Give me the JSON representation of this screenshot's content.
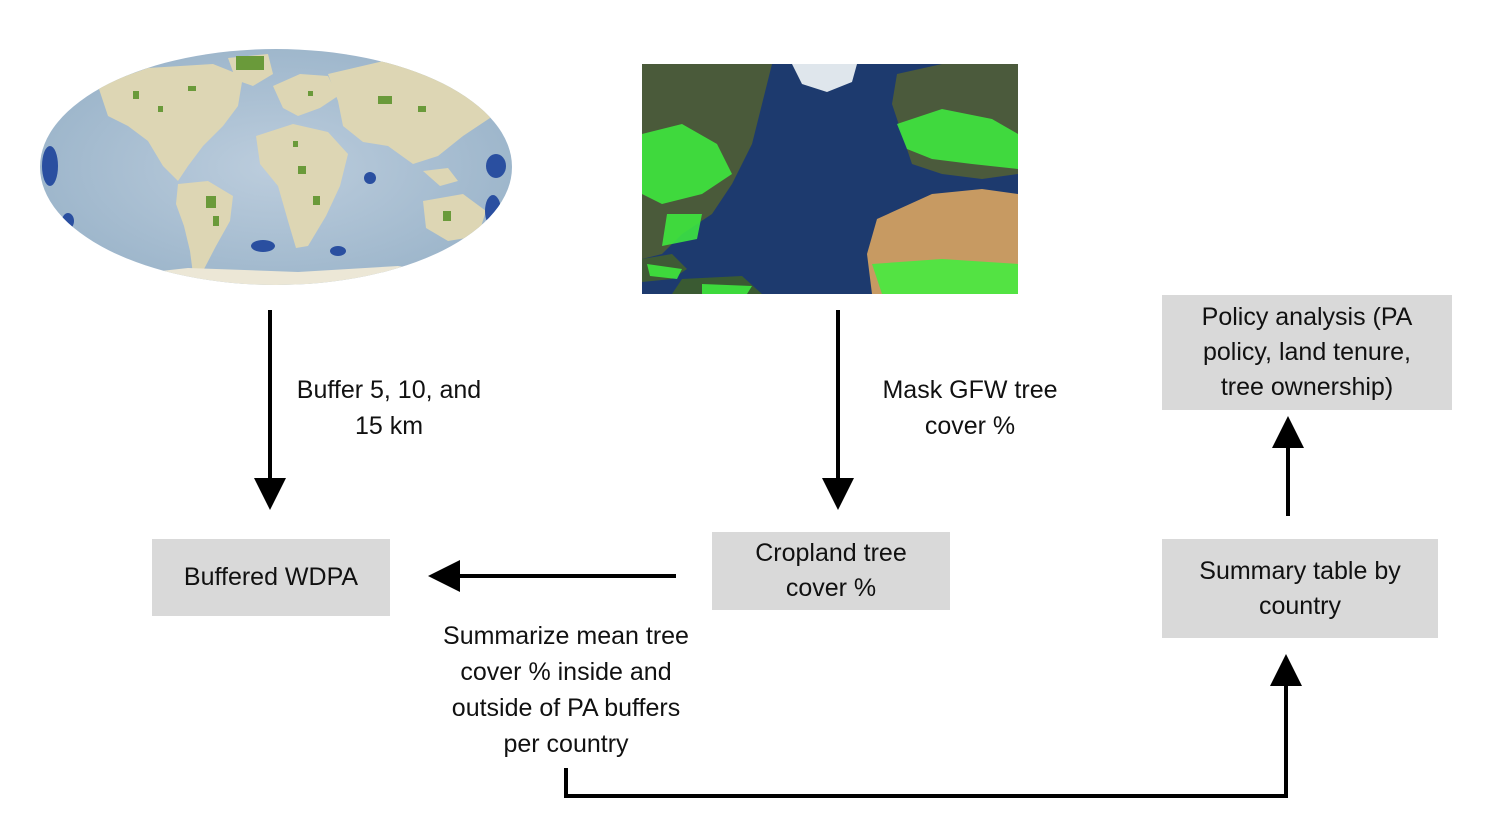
{
  "images": {
    "world_map": {
      "icon": "wdpa-world-map-icon"
    },
    "satellite_map": {
      "icon": "gfw-tree-cover-satellite-icon"
    }
  },
  "nodes": {
    "buffered_wdpa": "Buffered WDPA",
    "cropland_tree_cover_line1": "Cropland tree",
    "cropland_tree_cover_line2": "cover %",
    "summary_table_line1": "Summary table by",
    "summary_table_line2": "country",
    "policy_analysis_line1": "Policy analysis (PA",
    "policy_analysis_line2": "policy, land tenure,",
    "policy_analysis_line3": "tree ownership)"
  },
  "edge_labels": {
    "buffer_line1": "Buffer 5, 10, and",
    "buffer_line2": "15 km",
    "mask_line1": "Mask GFW tree",
    "mask_line2": "cover %",
    "summarize_line1": "Summarize mean tree",
    "summarize_line2": "cover % inside and",
    "summarize_line3": "outside of PA buffers",
    "summarize_line4": "per country"
  },
  "colors": {
    "box_fill": "#d9d9d9",
    "arrow": "#000000",
    "ocean": "#a9c0d4",
    "land": "#ddd6b4",
    "protected_area_marine": "#2a4fa0",
    "protected_area_land": "#6a9a3a",
    "satellite_ocean": "#1d3a6e",
    "tree_cover": "#3ef03e"
  }
}
